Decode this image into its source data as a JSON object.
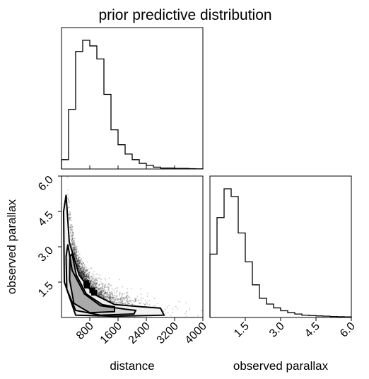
{
  "title": "prior predictive distribution",
  "chart_data": [
    {
      "id": "distance-hist",
      "type": "histogram",
      "xlim": [
        0,
        4000
      ],
      "bin_edges": [
        0,
        200,
        400,
        600,
        800,
        1000,
        1200,
        1400,
        1600,
        1800,
        2000,
        2200,
        2400,
        2600,
        2800,
        3000,
        3200,
        3400,
        3600,
        3800,
        4000
      ],
      "counts": [
        0.5,
        3.2,
        6.3,
        6.9,
        6.6,
        5.9,
        4.0,
        2.1,
        1.3,
        0.8,
        0.5,
        0.3,
        0.2,
        0.1,
        0.05,
        0.05,
        0.03,
        0.03,
        0.02,
        0.01
      ],
      "xticks": [
        800,
        1600,
        2400,
        3200,
        4000
      ]
    },
    {
      "id": "parallax-hist",
      "type": "histogram",
      "xlim": [
        0,
        6
      ],
      "bin_edges": [
        0,
        0.3,
        0.6,
        0.9,
        1.2,
        1.5,
        1.8,
        2.1,
        2.4,
        2.7,
        3.0,
        3.3,
        3.6,
        3.9,
        4.2,
        4.5,
        4.8,
        5.1,
        5.4,
        5.7,
        6.0
      ],
      "counts": [
        3.3,
        5.2,
        6.7,
        6.3,
        4.4,
        2.9,
        1.7,
        1.0,
        0.7,
        0.5,
        0.35,
        0.25,
        0.18,
        0.12,
        0.1,
        0.08,
        0.07,
        0.05,
        0.04,
        0.03
      ],
      "xticks": [
        "1.5",
        "3.0",
        "4.5",
        "6.0"
      ],
      "xlabel": "observed parallax"
    },
    {
      "id": "joint-2d",
      "type": "scatter-density",
      "xlabel": "distance",
      "ylabel": "observed parallax",
      "xlim": [
        0,
        4000
      ],
      "ylim": [
        0,
        6
      ],
      "xticks": [
        "800",
        "1600",
        "2400",
        "3200",
        "4000"
      ],
      "yticks": [
        "1.5",
        "3.0",
        "4.5",
        "6.0"
      ],
      "contours": [
        [
          [
            300,
            2.7
          ],
          [
            420,
            1.8
          ],
          [
            700,
            1.0
          ],
          [
            1150,
            0.55
          ],
          [
            1500,
            0.45
          ],
          [
            1500,
            0.25
          ],
          [
            800,
            0.2
          ],
          [
            350,
            0.6
          ],
          [
            230,
            1.6
          ],
          [
            240,
            2.6
          ]
        ],
        [
          [
            180,
            3.1
          ],
          [
            300,
            2.0
          ],
          [
            650,
            1.0
          ],
          [
            1100,
            0.5
          ],
          [
            1800,
            0.35
          ],
          [
            2100,
            0.3
          ],
          [
            2050,
            0.15
          ],
          [
            1100,
            0.1
          ],
          [
            400,
            0.3
          ],
          [
            150,
            1.2
          ],
          [
            130,
            2.6
          ]
        ],
        [
          [
            130,
            5.2
          ],
          [
            220,
            3.2
          ],
          [
            500,
            1.8
          ],
          [
            900,
            1.0
          ],
          [
            1500,
            0.55
          ],
          [
            2300,
            0.45
          ],
          [
            2800,
            0.4
          ],
          [
            2900,
            0.1
          ],
          [
            1500,
            0.05
          ],
          [
            400,
            0.1
          ],
          [
            80,
            1.5
          ],
          [
            60,
            4.5
          ]
        ]
      ],
      "core_squares": [
        [
          700,
          1.45
        ],
        [
          720,
          1.35
        ],
        [
          870,
          1.15
        ],
        [
          920,
          1.05
        ]
      ]
    }
  ]
}
